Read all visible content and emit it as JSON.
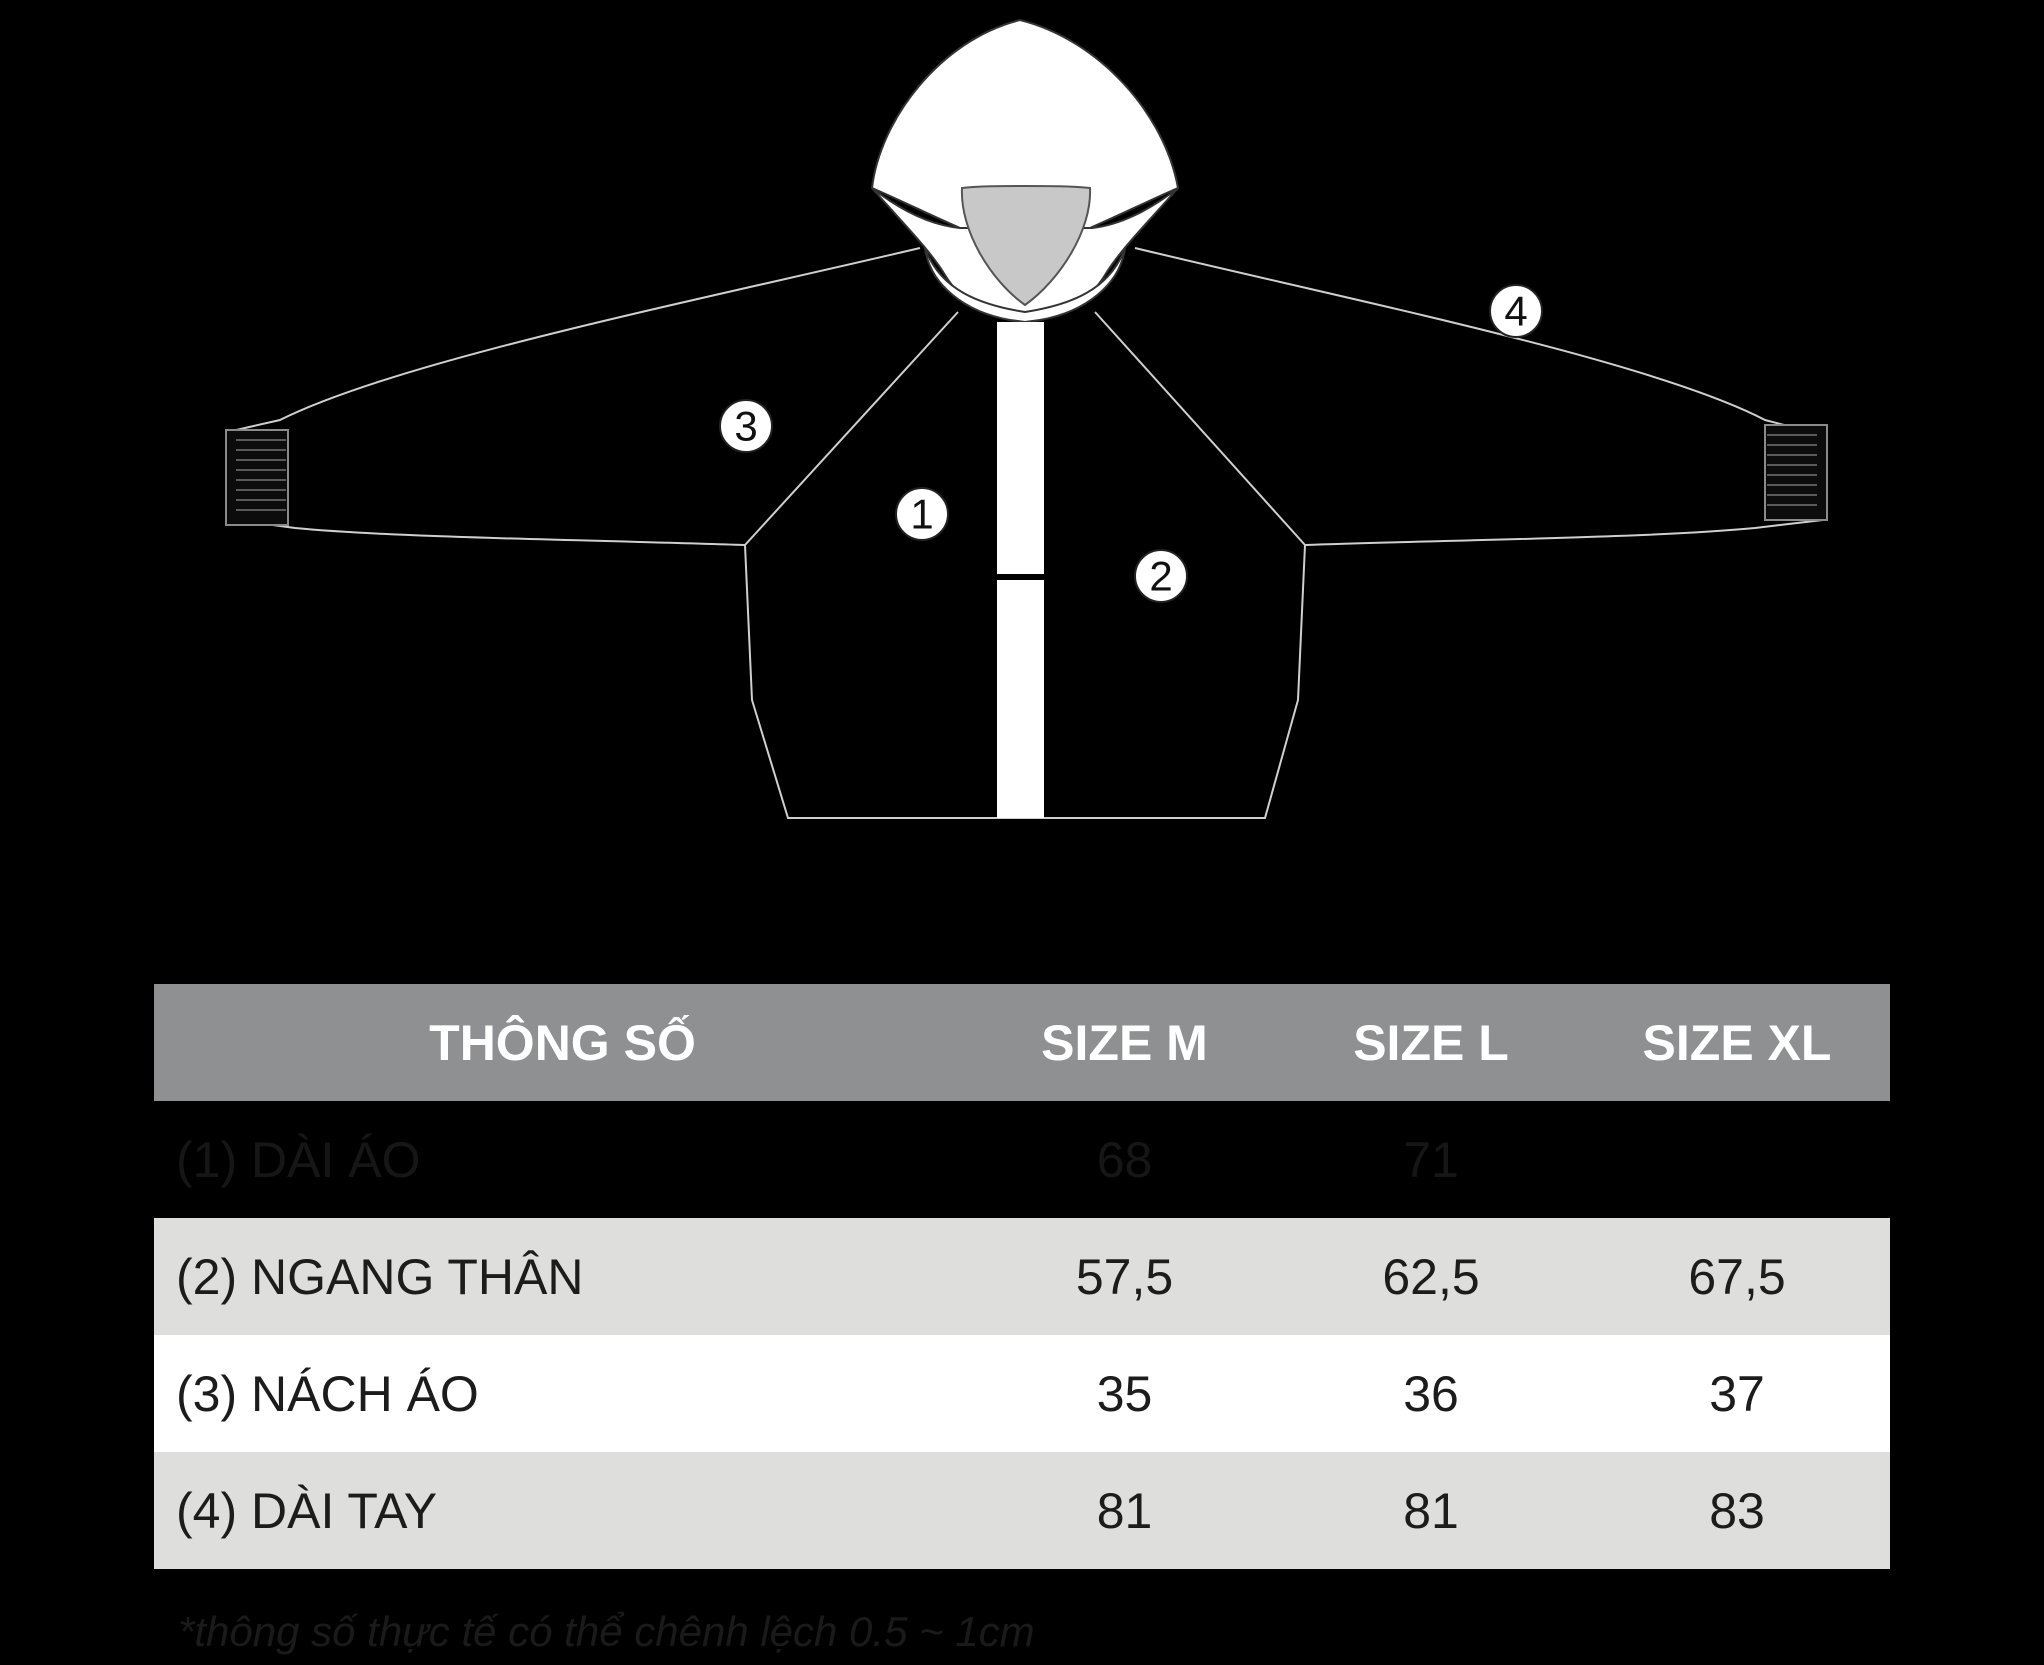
{
  "table": {
    "headers": [
      "THÔNG SỐ",
      "SIZE M",
      "SIZE L",
      "SIZE XL"
    ],
    "rows": [
      {
        "label": "(1) DÀI ÁO",
        "values": [
          "68",
          "71",
          ""
        ],
        "style": "dark"
      },
      {
        "label": "(2) NGANG THÂN",
        "values": [
          "57,5",
          "62,5",
          "67,5"
        ],
        "style": "grey"
      },
      {
        "label": "(3) NÁCH ÁO",
        "values": [
          "35",
          "36",
          "37"
        ],
        "style": "white"
      },
      {
        "label": "(4) DÀI TAY",
        "values": [
          "81",
          "81",
          "83"
        ],
        "style": "grey"
      }
    ]
  },
  "markers": [
    "1",
    "2",
    "3",
    "4"
  ],
  "footnote": "*thông số thực tế có thể chênh lệch 0.5 ~ 1cm",
  "colors": {
    "background": "#000000",
    "header": "#8f9091",
    "row_grey": "#dededd",
    "row_white": "#ffffff"
  }
}
